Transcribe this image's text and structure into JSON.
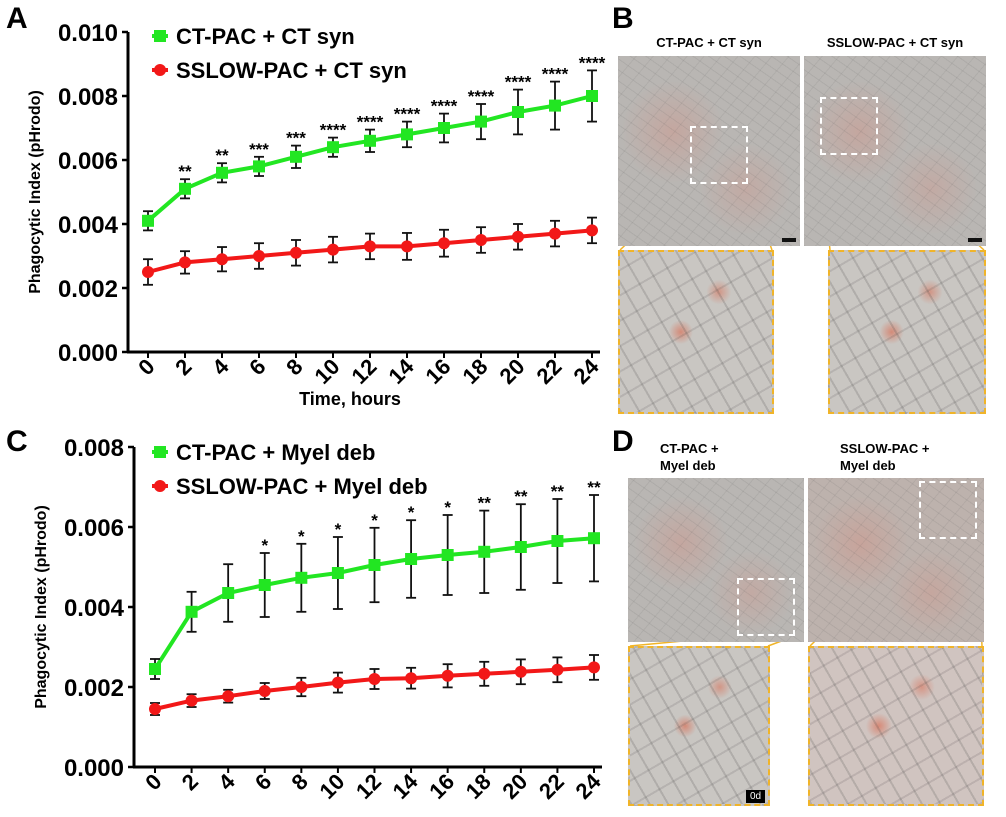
{
  "panels": {
    "A": "A",
    "B": "B",
    "C": "C",
    "D": "D"
  },
  "panel_b": {
    "titles": [
      "CT-PAC + CT syn",
      "SSLOW-PAC + CT syn"
    ]
  },
  "panel_d": {
    "titles": [
      "CT-PAC +\nMyel deb",
      "SSLOW-PAC +\nMyel deb"
    ],
    "inset_label": "0d"
  },
  "colors": {
    "green": "#22e622",
    "red": "#f21818",
    "inset_border": "#f0b429"
  },
  "chart_data": [
    {
      "type": "line",
      "panel": "A",
      "xlabel": "Time, hours",
      "ylabel": "Phagocytic Index (pHrodo)",
      "ylim": [
        0,
        0.01
      ],
      "yticks": [
        "0.000",
        "0.002",
        "0.004",
        "0.006",
        "0.008",
        "0.010"
      ],
      "x": [
        0,
        2,
        4,
        6,
        8,
        10,
        12,
        14,
        16,
        18,
        20,
        22,
        24
      ],
      "legend": "top-left",
      "series": [
        {
          "name": "CT-PAC + CT syn",
          "color": "#22e622",
          "marker": "square",
          "values": [
            0.0041,
            0.0051,
            0.0056,
            0.0058,
            0.0061,
            0.0064,
            0.0066,
            0.0068,
            0.007,
            0.0072,
            0.0075,
            0.0077,
            0.008
          ],
          "errors": [
            0.0003,
            0.0003,
            0.0003,
            0.0003,
            0.00035,
            0.0003,
            0.00035,
            0.0004,
            0.00045,
            0.00055,
            0.0007,
            0.00075,
            0.0008
          ]
        },
        {
          "name": "SSLOW-PAC + CT syn",
          "color": "#f21818",
          "marker": "circle",
          "values": [
            0.0025,
            0.0028,
            0.0029,
            0.003,
            0.0031,
            0.0032,
            0.0033,
            0.0033,
            0.0034,
            0.0035,
            0.0036,
            0.0037,
            0.0038
          ],
          "errors": [
            0.0004,
            0.00035,
            0.00038,
            0.0004,
            0.0004,
            0.0004,
            0.0004,
            0.00042,
            0.00042,
            0.0004,
            0.0004,
            0.0004,
            0.0004
          ]
        }
      ],
      "annotations": [
        "",
        "**",
        "**",
        "***",
        "***",
        "****",
        "****",
        "****",
        "****",
        "****",
        "****",
        "****",
        "****"
      ]
    },
    {
      "type": "line",
      "panel": "C",
      "xlabel": "",
      "ylabel": "Phagocytic Index (pHrodo)",
      "ylim": [
        0,
        0.008
      ],
      "yticks": [
        "0.000",
        "0.002",
        "0.004",
        "0.006",
        "0.008"
      ],
      "x": [
        0,
        2,
        4,
        6,
        8,
        10,
        12,
        14,
        16,
        18,
        20,
        22,
        24
      ],
      "legend": "top-left",
      "series": [
        {
          "name": "CT-PAC + Myel deb",
          "color": "#22e622",
          "marker": "square",
          "values": [
            0.00245,
            0.00388,
            0.00435,
            0.00455,
            0.00473,
            0.00485,
            0.00505,
            0.0052,
            0.0053,
            0.00538,
            0.0055,
            0.00565,
            0.00572
          ],
          "errors": [
            0.00025,
            0.0005,
            0.00072,
            0.0008,
            0.00085,
            0.0009,
            0.00093,
            0.00097,
            0.001,
            0.00103,
            0.00107,
            0.00105,
            0.00108
          ]
        },
        {
          "name": "SSLOW-PAC + Myel deb",
          "color": "#f21818",
          "marker": "circle",
          "values": [
            0.00145,
            0.00166,
            0.00177,
            0.0019,
            0.002,
            0.00211,
            0.0022,
            0.00222,
            0.00228,
            0.00233,
            0.00238,
            0.00243,
            0.00249
          ],
          "errors": [
            0.00015,
            0.00016,
            0.00016,
            0.0002,
            0.00023,
            0.00025,
            0.00025,
            0.00026,
            0.00029,
            0.0003,
            0.00031,
            0.00031,
            0.00031
          ]
        }
      ],
      "annotations": [
        "",
        "",
        "",
        "*",
        "*",
        "*",
        "*",
        "*",
        "*",
        "**",
        "**",
        "**",
        "**"
      ]
    }
  ]
}
